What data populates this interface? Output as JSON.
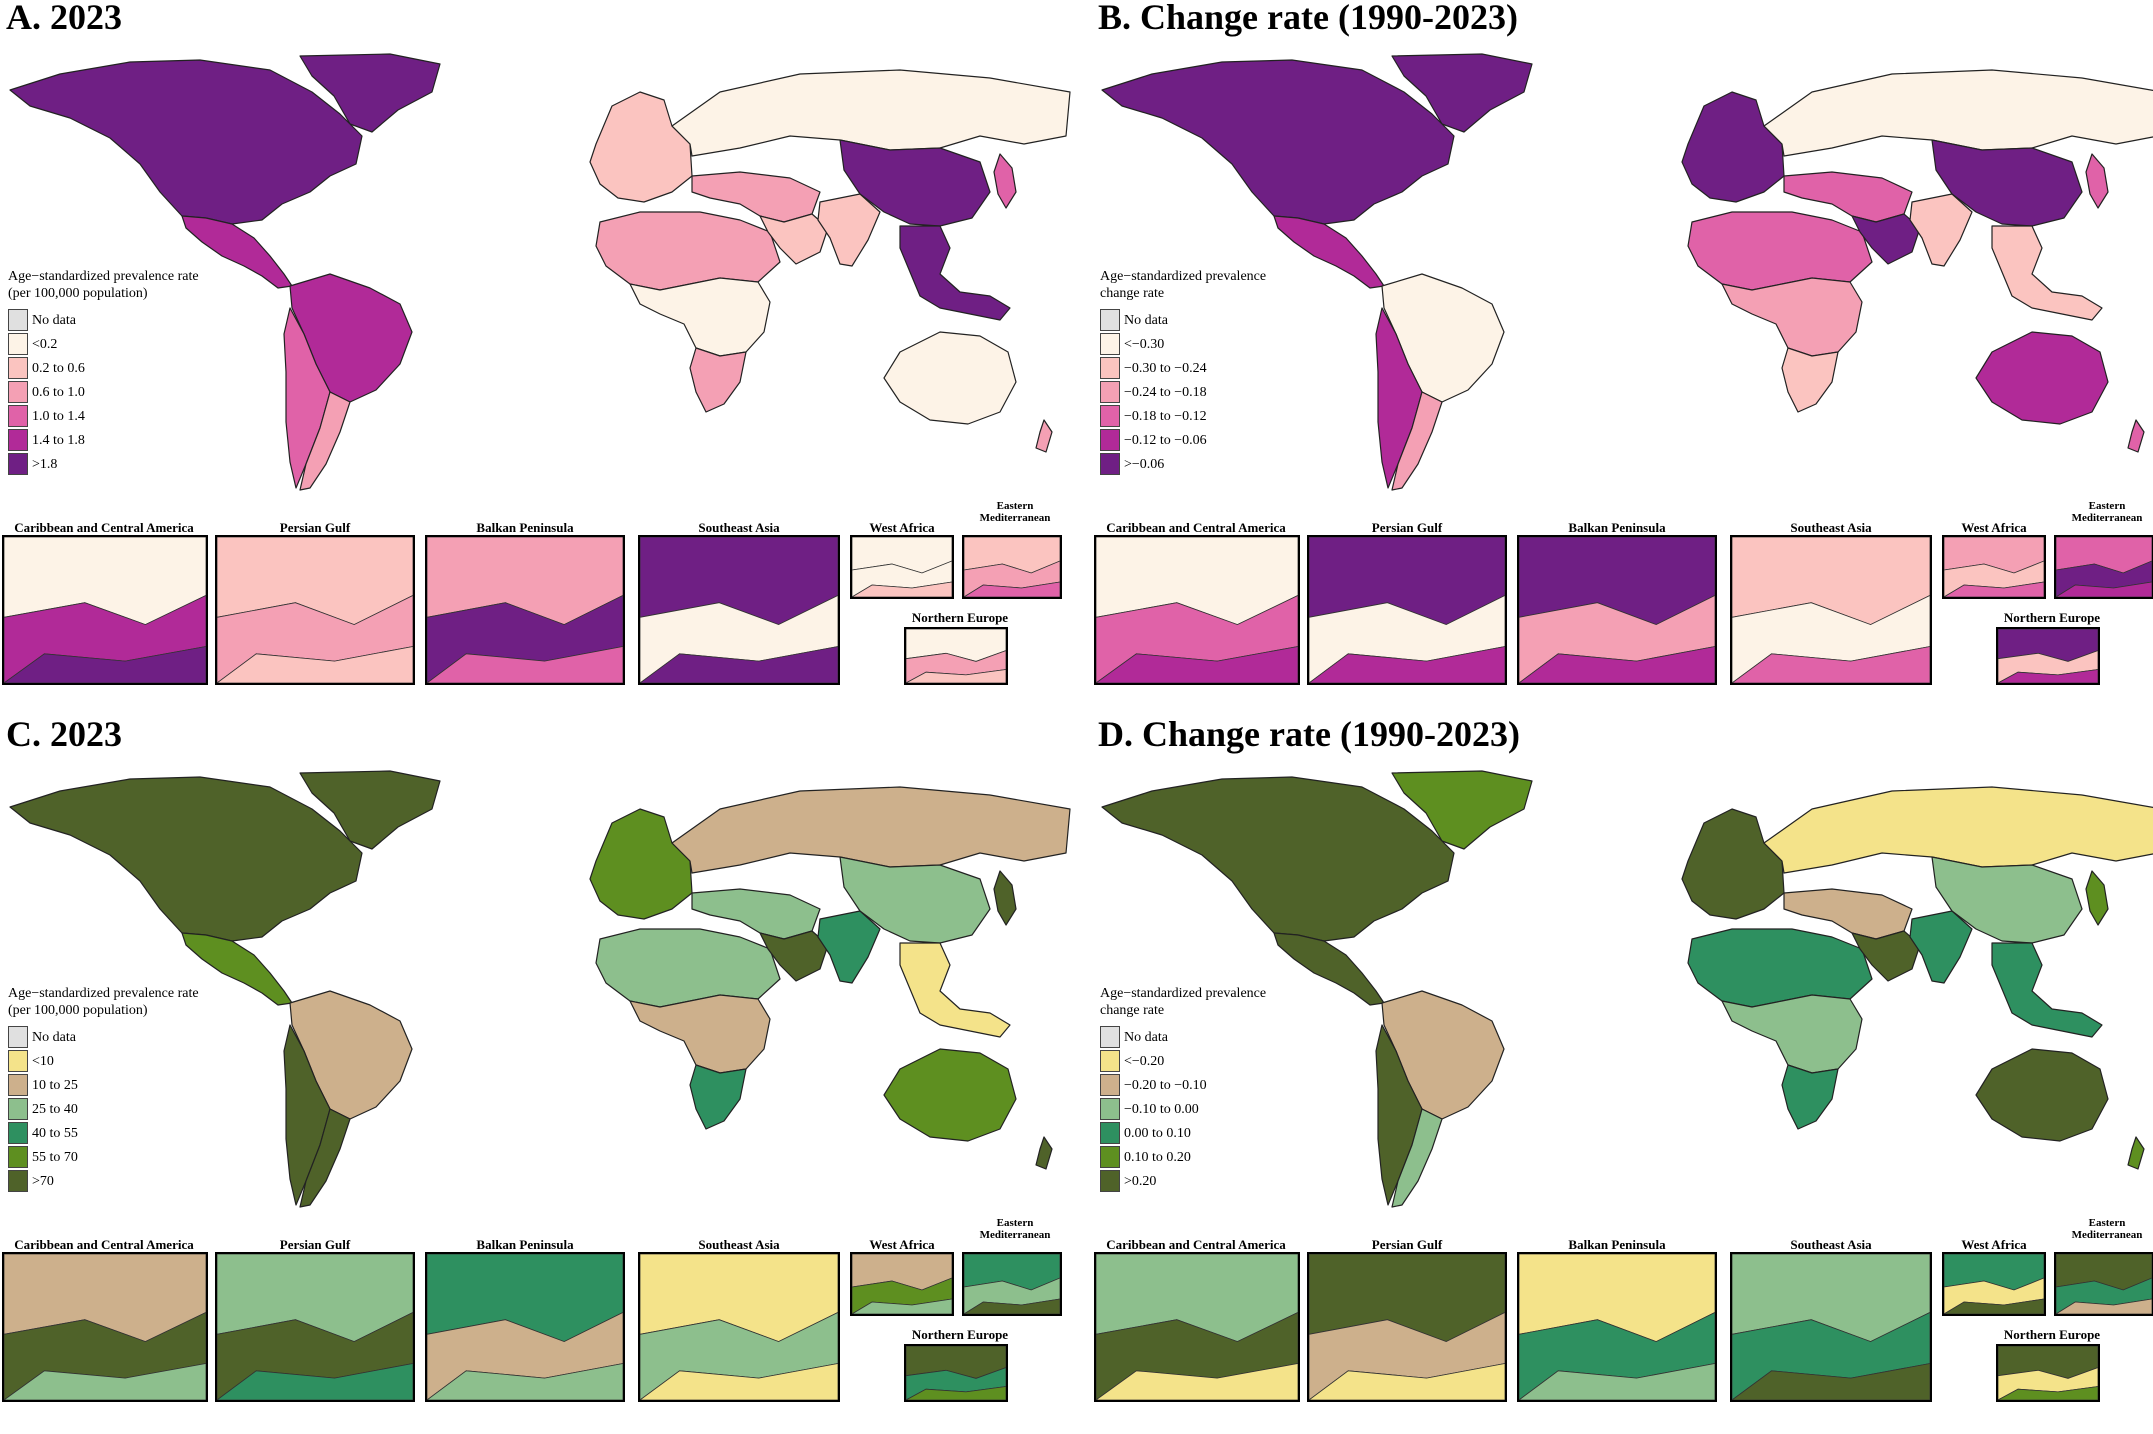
{
  "panels": [
    {
      "id": "a",
      "title": "A. 2023",
      "legend_title": "Age−standardized prevalence rate\n(per 100,000 population)",
      "legend": [
        "No data",
        "<0.2",
        "0.2 to 0.6",
        "0.6 to 1.0",
        "1.0 to 1.4",
        "1.4 to 1.8",
        ">1.8"
      ],
      "palette": [
        "#e0e0e0",
        "#fdf3e7",
        "#fbc4c0",
        "#f4a0b4",
        "#e062a8",
        "#b12a98",
        "#6f1f84"
      ],
      "regions": {
        "na": 6,
        "ca": 5,
        "sa_n": 5,
        "sa_w": 4,
        "sa_s": 3,
        "greenland": 6,
        "europe": 2,
        "russia": 1,
        "mideast": 3,
        "arabia": 2,
        "africa_n": 3,
        "africa_c": 1,
        "africa_s": 3,
        "india": 2,
        "china": 6,
        "sea": 6,
        "japan": 4,
        "australia": 1,
        "nz": 3
      },
      "insets": {
        "caribbean": [
          1,
          5,
          6
        ],
        "persian_gulf": [
          2,
          3,
          2
        ],
        "balkan": [
          3,
          6,
          4
        ],
        "southeast_asia": [
          6,
          1,
          6
        ],
        "west_africa": [
          1,
          1,
          2
        ],
        "eastern_med": [
          2,
          3,
          4
        ],
        "northern_europe": [
          1,
          3,
          2
        ]
      }
    },
    {
      "id": "b",
      "title": "B. Change rate (1990-2023)",
      "legend_title": "Age−standardized prevalence\nchange rate",
      "legend": [
        "No data",
        "<−0.30",
        "−0.30 to −0.24",
        "−0.24 to −0.18",
        "−0.18 to −0.12",
        "−0.12 to −0.06",
        ">−0.06"
      ],
      "palette": [
        "#e0e0e0",
        "#fdf3e7",
        "#fbc4c0",
        "#f4a0b4",
        "#e062a8",
        "#b12a98",
        "#6f1f84"
      ],
      "regions": {
        "na": 6,
        "ca": 5,
        "sa_n": 1,
        "sa_w": 5,
        "sa_s": 3,
        "greenland": 6,
        "europe": 6,
        "russia": 1,
        "mideast": 4,
        "arabia": 6,
        "africa_n": 4,
        "africa_c": 3,
        "africa_s": 2,
        "india": 2,
        "china": 6,
        "sea": 2,
        "japan": 4,
        "australia": 5,
        "nz": 4
      },
      "insets": {
        "caribbean": [
          1,
          4,
          5
        ],
        "persian_gulf": [
          6,
          1,
          5
        ],
        "balkan": [
          6,
          3,
          5
        ],
        "southeast_asia": [
          2,
          1,
          4
        ],
        "west_africa": [
          3,
          2,
          4
        ],
        "eastern_med": [
          4,
          6,
          5
        ],
        "northern_europe": [
          6,
          2,
          5
        ]
      }
    },
    {
      "id": "c",
      "title": "C. 2023",
      "legend_title": "Age−standardized prevalence rate\n(per 100,000 population)",
      "legend": [
        "No data",
        "<10",
        "10 to 25",
        "25 to 40",
        "40 to 55",
        "55 to 70",
        ">70"
      ],
      "palette": [
        "#e0e0e0",
        "#f4e38a",
        "#cdb08c",
        "#8dbf8d",
        "#2e9060",
        "#5e8f20",
        "#4f6229"
      ],
      "regions": {
        "na": 6,
        "ca": 5,
        "sa_n": 2,
        "sa_w": 6,
        "sa_s": 6,
        "greenland": 6,
        "europe": 5,
        "russia": 2,
        "mideast": 3,
        "arabia": 6,
        "africa_n": 3,
        "africa_c": 2,
        "africa_s": 4,
        "india": 4,
        "china": 3,
        "sea": 1,
        "japan": 6,
        "australia": 5,
        "nz": 6
      },
      "insets": {
        "caribbean": [
          2,
          6,
          3
        ],
        "persian_gulf": [
          3,
          6,
          4
        ],
        "balkan": [
          4,
          2,
          3
        ],
        "southeast_asia": [
          1,
          3,
          1
        ],
        "west_africa": [
          2,
          5,
          3
        ],
        "eastern_med": [
          4,
          3,
          6
        ],
        "northern_europe": [
          6,
          4,
          5
        ]
      }
    },
    {
      "id": "d",
      "title": "D. Change rate (1990-2023)",
      "legend_title": "Age−standardized prevalence\nchange rate",
      "legend": [
        "No data",
        "<−0.20",
        "−0.20 to −0.10",
        "−0.10 to 0.00",
        "0.00 to 0.10",
        "0.10 to 0.20",
        ">0.20"
      ],
      "palette": [
        "#e0e0e0",
        "#f4e38a",
        "#cdb08c",
        "#8dbf8d",
        "#2e9060",
        "#5e8f20",
        "#4f6229"
      ],
      "regions": {
        "na": 6,
        "ca": 6,
        "sa_n": 2,
        "sa_w": 6,
        "sa_s": 3,
        "greenland": 5,
        "europe": 6,
        "russia": 1,
        "mideast": 2,
        "arabia": 6,
        "africa_n": 4,
        "africa_c": 3,
        "africa_s": 4,
        "india": 4,
        "china": 3,
        "sea": 4,
        "japan": 5,
        "australia": 6,
        "nz": 5
      },
      "insets": {
        "caribbean": [
          3,
          6,
          1
        ],
        "persian_gulf": [
          6,
          2,
          1
        ],
        "balkan": [
          1,
          4,
          3
        ],
        "southeast_asia": [
          3,
          4,
          6
        ],
        "west_africa": [
          4,
          1,
          6
        ],
        "eastern_med": [
          6,
          4,
          2
        ],
        "northern_europe": [
          6,
          1,
          5
        ]
      }
    }
  ],
  "inset_labels": {
    "caribbean": "Caribbean and Central America",
    "persian_gulf": "Persian Gulf",
    "balkan": "Balkan Peninsula",
    "southeast_asia": "Southeast Asia",
    "west_africa": "West Africa",
    "eastern_med": "Eastern\nMediterranean",
    "northern_europe": "Northern Europe"
  }
}
